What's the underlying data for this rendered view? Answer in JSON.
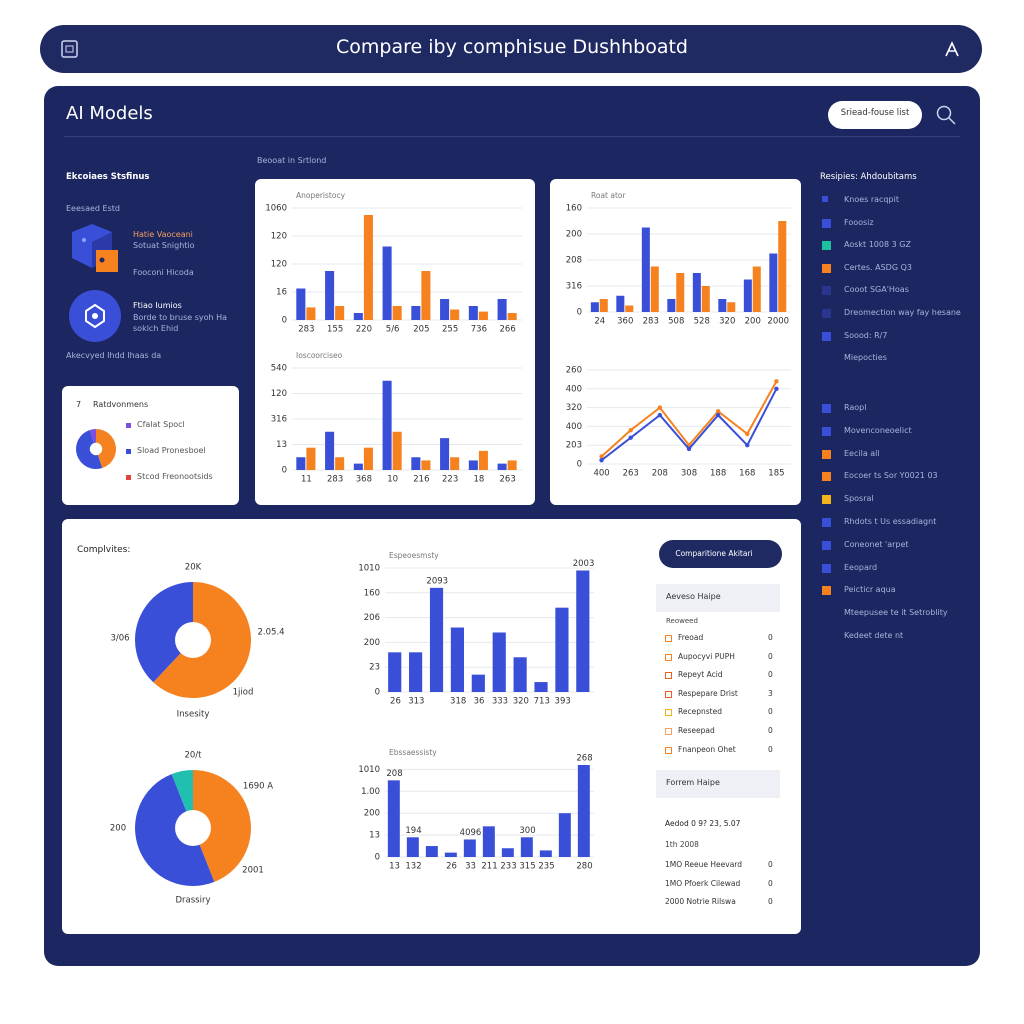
{
  "header": {
    "title": "Compare iby comphisue Dushhboatd"
  },
  "panel": {
    "title": "AI Models",
    "search": "Sriead-fouse list"
  },
  "left": {
    "heading": "Ekcoiaes Stsfinus",
    "sub": "Eeesaed Estd",
    "models": [
      {
        "name": "Hatie Vaoceani",
        "desc": "Sotuat Snightio"
      },
      {
        "name": "Ftiao Iumios",
        "desc": "Borde to bruse syoh Ha soklch Ehid"
      }
    ],
    "link": "Fooconi Hicoda",
    "footer": "Akecvyed Ihdd Ihaas da"
  },
  "section_label": "Beooat in Srtlond",
  "mini": {
    "count": "7",
    "title": "Ratdvonmens",
    "items": [
      {
        "label": "Cfalat Spocl",
        "color": "#7b4fe0"
      },
      {
        "label": "Sload Pronesboel",
        "color": "#3a4fd8"
      },
      {
        "label": "Stcod Freonootsids",
        "color": "#e0443a"
      }
    ]
  },
  "bottom": {
    "title": "Complvites:"
  },
  "side": {
    "button": "Comparitione Akitari",
    "box1": "Aeveso Haipe",
    "box1_sub": "Reoweed",
    "items": [
      {
        "label": "Freoad",
        "color": "#f5821f",
        "value": "0"
      },
      {
        "label": "Aupocyvi PUPH",
        "color": "#f5821f",
        "value": "0"
      },
      {
        "label": "Repeyt Acid",
        "color": "#e8601f",
        "value": "0"
      },
      {
        "label": "Respepare Drist",
        "color": "#e8601f",
        "value": "3"
      },
      {
        "label": "Recepnsted",
        "color": "#f3b31b",
        "value": "0"
      },
      {
        "label": "Reseepad",
        "color": "#f5a05f",
        "value": "0"
      },
      {
        "label": "Fnanpeon Ohet",
        "color": "#f5821f",
        "value": "0"
      }
    ],
    "box2": "Forrem Haipe",
    "note": "Aedod 0 9? 23, 5.07",
    "note2": "1th 2008",
    "rows": [
      {
        "label": "1MO Reeue Heevard",
        "value": "0"
      },
      {
        "label": "1MO Pfoerk Cilewad",
        "value": "0"
      },
      {
        "label": "2000 Notrie Rilswa",
        "value": "0"
      }
    ]
  },
  "legend": {
    "heading": "Resipies: Ahdoubitams",
    "items": [
      {
        "label": "Knoes racqpit",
        "color": "#3a4fd8"
      },
      {
        "label": "Fooosiz",
        "color": "#3a4fd8"
      },
      {
        "label": "Aoskt 1008 3 GZ",
        "color": "#1fc0a0"
      },
      {
        "label": "Certes. ASDG Q3",
        "color": "#f5821f"
      },
      {
        "label": "Cooot SGA'Hoas",
        "color": "#2a3590"
      },
      {
        "label": "Dreomection way fay hesane",
        "color": "#2a3590"
      },
      {
        "label": "Soood: R/7",
        "color": "#3a4fd8"
      },
      {
        "label": "Miepocties",
        "color": null
      },
      {
        "label": "Raopl",
        "color": "#3a4fd8"
      },
      {
        "label": "Movenconeoelict",
        "color": "#3a4fd8"
      },
      {
        "label": "Eecila all",
        "color": "#f5821f"
      },
      {
        "label": "Eocoer ts Sor Y0021 03",
        "color": "#f5821f"
      },
      {
        "label": "Sposral",
        "color": "#f3b31b"
      },
      {
        "label": "Rhdots t Us essadiagnt",
        "color": "#3a4fd8"
      },
      {
        "label": "Coneonet 'arpet",
        "color": "#3a4fd8"
      },
      {
        "label": "Eeopard",
        "color": "#3a4fd8"
      },
      {
        "label": "Peicticr aqua",
        "color": "#f5821f"
      },
      {
        "label": "Mteepusee te it Setroblity",
        "color": null
      },
      {
        "label": "Kedeet dete nt",
        "color": null
      }
    ]
  },
  "chart_data": [
    {
      "type": "bar",
      "title": "Anoperistocy",
      "grid": true,
      "categories": [
        "283",
        "155",
        "220",
        "5/6",
        "205",
        "255",
        "736",
        "266"
      ],
      "ylim": [
        0,
        160
      ],
      "yticks": [
        0,
        {
          "value": 40,
          "label": "16"
        },
        {
          "value": 80,
          "label": "120"
        },
        120,
        {
          "value": 160,
          "label": "1060"
        }
      ],
      "series": [
        {
          "color": "#3a4fd8",
          "values": [
            45,
            70,
            10,
            105,
            20,
            30,
            20,
            30
          ]
        },
        {
          "color": "#f5821f",
          "values": [
            18,
            20,
            150,
            20,
            70,
            15,
            12,
            10
          ]
        }
      ]
    },
    {
      "type": "bar",
      "title": "Ioscoorciseo",
      "grid": true,
      "categories": [
        "11",
        "283",
        "368",
        "10",
        "216",
        "223",
        "18",
        "263"
      ],
      "ylim": [
        0,
        160
      ],
      "yticks": [
        0,
        {
          "value": 40,
          "label": "13"
        },
        {
          "value": 80,
          "label": "316"
        },
        120,
        {
          "value": 160,
          "label": "540"
        }
      ],
      "series": [
        {
          "color": "#3a4fd8",
          "values": [
            20,
            60,
            10,
            140,
            20,
            50,
            15,
            10
          ]
        },
        {
          "color": "#f5821f",
          "values": [
            35,
            20,
            35,
            60,
            15,
            20,
            30,
            15
          ]
        }
      ]
    },
    {
      "type": "bar",
      "title": "Roat ator",
      "grid": true,
      "categories": [
        "24",
        "360",
        "283",
        "508",
        "528",
        "320",
        "200",
        "2000"
      ],
      "ylim": [
        0,
        160
      ],
      "yticks": [
        0,
        {
          "value": 40,
          "label": "316"
        },
        {
          "value": 80,
          "label": "208"
        },
        {
          "value": 120,
          "label": "200"
        },
        160
      ],
      "series": [
        {
          "color": "#3a4fd8",
          "values": [
            15,
            25,
            130,
            20,
            60,
            20,
            50,
            90
          ]
        },
        {
          "color": "#f5821f",
          "values": [
            20,
            10,
            70,
            60,
            40,
            15,
            70,
            140
          ]
        }
      ]
    },
    {
      "type": "line",
      "title": "",
      "grid": true,
      "categories": [
        "400",
        "263",
        "208",
        "308",
        "188",
        "168",
        "185"
      ],
      "ylim": [
        0,
        250
      ],
      "yticks": [
        0,
        {
          "value": 50,
          "label": "203"
        },
        {
          "value": 100,
          "label": "400"
        },
        {
          "value": 150,
          "label": "320"
        },
        {
          "value": 200,
          "label": "400"
        },
        {
          "value": 250,
          "label": "260"
        }
      ],
      "series": [
        {
          "color": "#f5821f",
          "values": [
            20,
            90,
            150,
            50,
            140,
            80,
            220
          ]
        },
        {
          "color": "#3a4fd8",
          "values": [
            10,
            70,
            130,
            40,
            130,
            50,
            200
          ]
        }
      ]
    },
    {
      "type": "bar",
      "title": "Espeoesmsty",
      "grid": true,
      "categories": [
        "26",
        "313",
        null,
        "318",
        "36",
        "333",
        "320",
        "713",
        "393",
        null
      ],
      "ylim": [
        0,
        250
      ],
      "yticks": [
        0,
        {
          "value": 50,
          "label": "23"
        },
        {
          "value": 100,
          "label": "200"
        },
        {
          "value": 150,
          "label": "206"
        },
        {
          "value": 200,
          "label": "160"
        },
        {
          "value": 250,
          "label": "1010"
        }
      ],
      "series": [
        {
          "color": "#3a4fd8",
          "values": [
            80,
            80,
            210,
            130,
            35,
            120,
            70,
            20,
            170,
            245
          ]
        }
      ],
      "annotations": [
        "2093",
        "2003"
      ]
    },
    {
      "type": "bar",
      "title": "Ebssaessisty",
      "grid": true,
      "categories": [
        "13",
        "132",
        null,
        "26",
        "33",
        "211",
        "233",
        "315",
        "235",
        null,
        "280"
      ],
      "ylim": [
        0,
        210
      ],
      "yticks": [
        0,
        {
          "value": 50,
          "label": "13"
        },
        {
          "value": 100,
          "label": "200"
        },
        {
          "value": 150,
          "label": "1.00"
        },
        {
          "value": 200,
          "label": "1010"
        }
      ],
      "series": [
        {
          "color": "#3a4fd8",
          "values": [
            175,
            45,
            25,
            10,
            40,
            70,
            20,
            45,
            15,
            100,
            210
          ]
        }
      ],
      "annotations": [
        "208",
        "194",
        "4096",
        "300",
        "268"
      ]
    },
    {
      "type": "pie",
      "values": [
        62,
        38
      ],
      "colors": [
        "#f5821f",
        "#3a4fd8"
      ],
      "annotations": [
        "20K",
        "3/06",
        "2.05.4",
        "1jiod"
      ],
      "caption": "Insesity"
    },
    {
      "type": "pie",
      "values": [
        44,
        50,
        6
      ],
      "colors": [
        "#f5821f",
        "#3a4fd8",
        "#1fc0b0"
      ],
      "annotations": [
        "20/t",
        "1690 A",
        "200",
        "2001"
      ],
      "caption": "Drassiry"
    },
    {
      "type": "pie",
      "values": [
        45,
        50,
        5
      ],
      "colors": [
        "#f5821f",
        "#3a4fd8",
        "#7b4fe0"
      ]
    }
  ]
}
